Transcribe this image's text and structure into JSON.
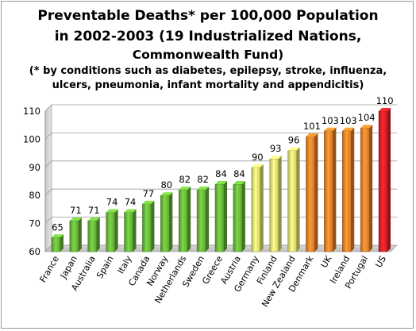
{
  "chart_data": {
    "type": "bar",
    "title": "Preventable Deaths* per 100,000 Population",
    "title_line2": "in 2002-2003  (19 Industrialized Nations,",
    "title_line3": "Commonwealth Fund)",
    "subtitle_line1": "(* by conditions such as diabetes, epilepsy, stroke, influenza,",
    "subtitle_line2": "ulcers, pneumonia, infant mortality and appendicitis)",
    "categories": [
      "France",
      "Japan",
      "Australia",
      "Spain",
      "Italy",
      "Canada",
      "Norway",
      "Netherlands",
      "Sweden",
      "Greece",
      "Austria",
      "Germany",
      "Finland",
      "New Zealand",
      "Denmark",
      "UK",
      "Ireland",
      "Portugal",
      "US"
    ],
    "values": [
      65,
      71,
      71,
      74,
      74,
      77,
      80,
      82,
      82,
      84,
      84,
      90,
      93,
      96,
      101,
      103,
      103,
      104,
      110
    ],
    "data_labels": [
      "65",
      "71",
      "71",
      "74",
      "74",
      "77",
      "80",
      "82",
      "82",
      "84",
      "84",
      "90",
      "93",
      "96",
      "101",
      "103",
      "103",
      "104",
      "110"
    ],
    "bar_colors": [
      "#6fc23e",
      "#6fc23e",
      "#6fc23e",
      "#6fc23e",
      "#6fc23e",
      "#6fc23e",
      "#6fc23e",
      "#6fc23e",
      "#6fc23e",
      "#6fc23e",
      "#6fc23e",
      "#f2f07a",
      "#f2f07a",
      "#f2f07a",
      "#f28a2e",
      "#f28a2e",
      "#f28a2e",
      "#f28a2e",
      "#e8232a"
    ],
    "ylim": [
      60,
      110
    ],
    "y_ticks": [
      60,
      70,
      80,
      90,
      100,
      110
    ],
    "y_tick_labels": [
      "60",
      "70",
      "80",
      "90",
      "100",
      "110"
    ],
    "xlabel": "",
    "ylabel": "",
    "grid": true,
    "legend": "none"
  }
}
